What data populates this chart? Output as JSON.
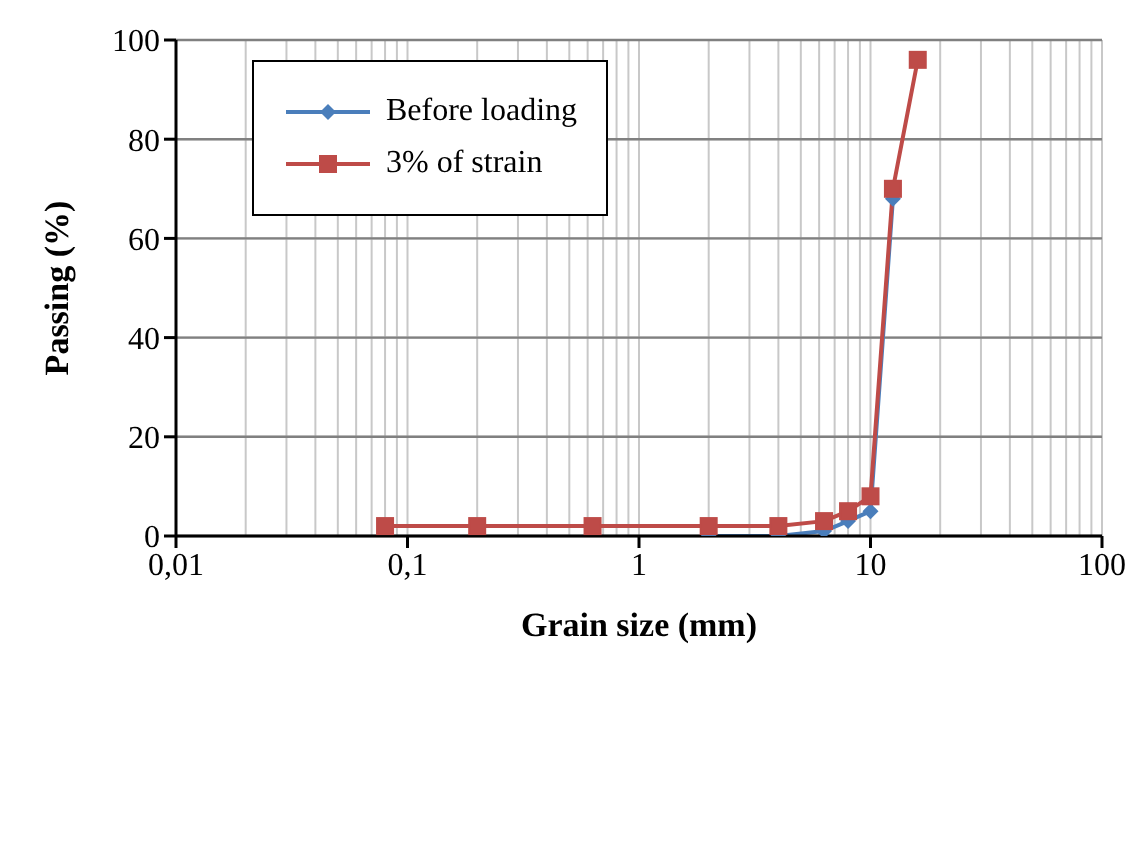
{
  "chart_data": {
    "type": "line",
    "xlabel": "Grain size (mm)",
    "ylabel": "Passing (%)",
    "log": "x",
    "xlim": [
      0.01,
      100
    ],
    "xticks": [
      {
        "value": 0.01,
        "label": "0,01"
      },
      {
        "value": 0.1,
        "label": "0,1"
      },
      1,
      10,
      100
    ],
    "ylim": [
      0,
      100
    ],
    "yticks": [
      0,
      20,
      40,
      60,
      80,
      100
    ],
    "grid": true,
    "legend": "top left",
    "x": [
      0.08,
      0.2,
      0.63,
      2,
      4,
      6.3,
      8,
      10,
      12.5,
      16
    ],
    "series": [
      {
        "name": "Before loading",
        "color": "#4a7ebb",
        "marker": "diamond",
        "values": [
          null,
          null,
          null,
          0,
          0,
          1,
          3,
          5,
          68,
          null
        ]
      },
      {
        "name": "3% of strain",
        "color": "#be4b48",
        "marker": "square",
        "values": [
          2,
          2,
          2,
          2,
          2,
          3,
          5,
          8,
          70,
          96
        ]
      }
    ]
  }
}
